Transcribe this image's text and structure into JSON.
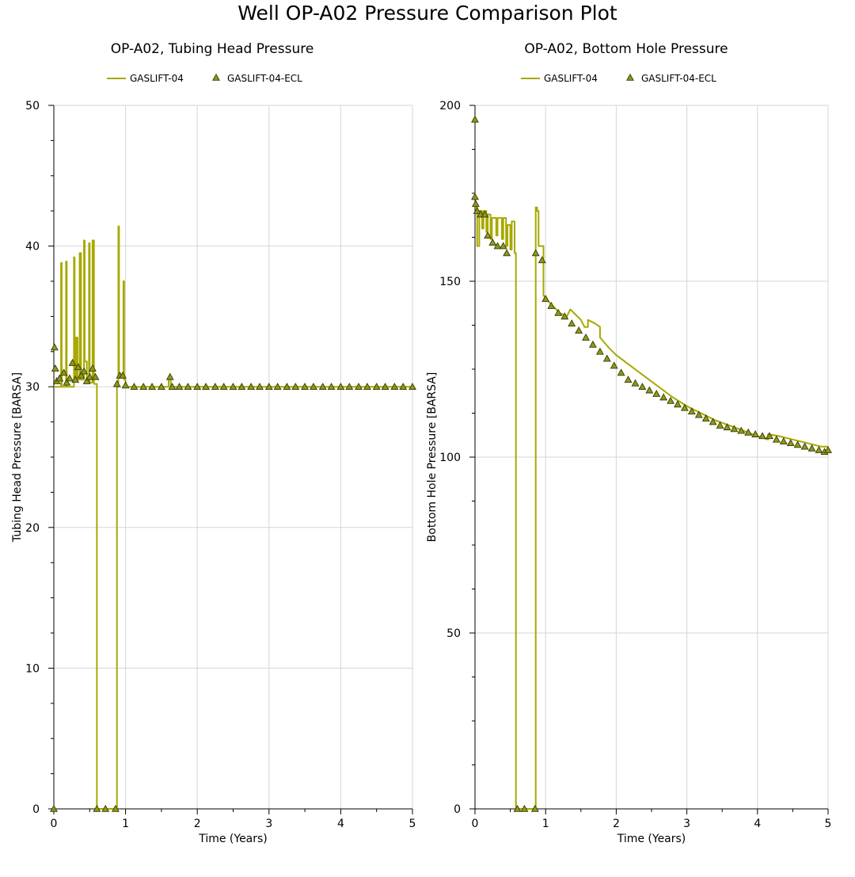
{
  "page_title": "Well OP-A02 Pressure Comparison Plot",
  "colors": {
    "line": "#a8a800",
    "marker_fill": "#8a9a1c",
    "marker_stroke": "#3a3a00",
    "grid": "#d6d6d6"
  },
  "chart_data": [
    {
      "type": "line",
      "title": "OP-A02, Tubing Head Pressure",
      "xlabel": "Time (Years)",
      "ylabel": "Tubing Head Pressure [BARSA]",
      "xlim": [
        0,
        5
      ],
      "ylim": [
        0,
        50
      ],
      "xticks": [
        0,
        1,
        2,
        3,
        4,
        5
      ],
      "yticks": [
        0,
        10,
        20,
        30,
        40,
        50
      ],
      "grid": true,
      "legend_position": "top",
      "series": [
        {
          "name": "GASLIFT-04",
          "kind": "line",
          "points": [
            [
              0,
              30
            ],
            [
              0.1,
              30
            ],
            [
              0.1,
              38.8
            ],
            [
              0.11,
              38.8
            ],
            [
              0.11,
              30
            ],
            [
              0.17,
              30
            ],
            [
              0.17,
              38.9
            ],
            [
              0.18,
              38.9
            ],
            [
              0.18,
              30
            ],
            [
              0.28,
              30
            ],
            [
              0.28,
              39.2
            ],
            [
              0.29,
              39.2
            ],
            [
              0.29,
              30.5
            ],
            [
              0.31,
              30.5
            ],
            [
              0.31,
              33.5
            ],
            [
              0.33,
              33.5
            ],
            [
              0.33,
              30.5
            ],
            [
              0.36,
              30.5
            ],
            [
              0.36,
              39.5
            ],
            [
              0.38,
              39.5
            ],
            [
              0.38,
              30.5
            ],
            [
              0.42,
              30.5
            ],
            [
              0.42,
              40.4
            ],
            [
              0.43,
              40.4
            ],
            [
              0.43,
              31.8
            ],
            [
              0.46,
              31.8
            ],
            [
              0.46,
              30.4
            ],
            [
              0.49,
              30.4
            ],
            [
              0.49,
              40.2
            ],
            [
              0.5,
              40.2
            ],
            [
              0.5,
              30.3
            ],
            [
              0.54,
              30.3
            ],
            [
              0.54,
              40.4
            ],
            [
              0.56,
              40.4
            ],
            [
              0.56,
              30.2
            ],
            [
              0.6,
              30.2
            ],
            [
              0.6,
              0
            ],
            [
              0.88,
              0
            ],
            [
              0.88,
              30
            ],
            [
              0.9,
              30
            ],
            [
              0.9,
              41.4
            ],
            [
              0.91,
              41.4
            ],
            [
              0.91,
              30.8
            ],
            [
              0.97,
              30.8
            ],
            [
              0.97,
              37.5
            ],
            [
              0.98,
              37.5
            ],
            [
              0.98,
              30.5
            ],
            [
              1.0,
              30.5
            ],
            [
              1.0,
              30
            ],
            [
              1.6,
              30
            ],
            [
              1.6,
              30.6
            ],
            [
              1.63,
              30.6
            ],
            [
              1.63,
              30
            ],
            [
              5,
              30
            ]
          ]
        },
        {
          "name": "GASLIFT-04-ECL",
          "kind": "markers",
          "points": [
            [
              0.0,
              0
            ],
            [
              0.01,
              32.8
            ],
            [
              0.02,
              31.3
            ],
            [
              0.04,
              30.4
            ],
            [
              0.08,
              30.6
            ],
            [
              0.14,
              31.0
            ],
            [
              0.18,
              30.3
            ],
            [
              0.22,
              30.6
            ],
            [
              0.26,
              31.7
            ],
            [
              0.3,
              30.5
            ],
            [
              0.34,
              31.4
            ],
            [
              0.38,
              30.8
            ],
            [
              0.42,
              31.1
            ],
            [
              0.46,
              30.4
            ],
            [
              0.5,
              30.7
            ],
            [
              0.54,
              31.3
            ],
            [
              0.58,
              30.7
            ],
            [
              0.6,
              0
            ],
            [
              0.72,
              0
            ],
            [
              0.86,
              0
            ],
            [
              0.88,
              30.2
            ],
            [
              0.92,
              30.8
            ],
            [
              0.96,
              30.8
            ],
            [
              1.0,
              30.1
            ],
            [
              1.12,
              30.0
            ],
            [
              1.25,
              30.0
            ],
            [
              1.37,
              30.0
            ],
            [
              1.5,
              30.0
            ],
            [
              1.62,
              30.7
            ],
            [
              1.65,
              30.0
            ],
            [
              1.75,
              30.0
            ],
            [
              1.87,
              30.0
            ],
            [
              2.0,
              30.0
            ],
            [
              2.12,
              30.0
            ],
            [
              2.25,
              30.0
            ],
            [
              2.37,
              30.0
            ],
            [
              2.5,
              30.0
            ],
            [
              2.62,
              30.0
            ],
            [
              2.75,
              30.0
            ],
            [
              2.87,
              30.0
            ],
            [
              3.0,
              30.0
            ],
            [
              3.12,
              30.0
            ],
            [
              3.25,
              30.0
            ],
            [
              3.37,
              30.0
            ],
            [
              3.5,
              30.0
            ],
            [
              3.62,
              30.0
            ],
            [
              3.75,
              30.0
            ],
            [
              3.87,
              30.0
            ],
            [
              4.0,
              30.0
            ],
            [
              4.12,
              30.0
            ],
            [
              4.25,
              30.0
            ],
            [
              4.37,
              30.0
            ],
            [
              4.5,
              30.0
            ],
            [
              4.62,
              30.0
            ],
            [
              4.75,
              30.0
            ],
            [
              4.87,
              30.0
            ],
            [
              5.0,
              30.0
            ]
          ]
        }
      ]
    },
    {
      "type": "line",
      "title": "OP-A02, Bottom Hole Pressure",
      "xlabel": "Time (Years)",
      "ylabel": "Bottom Hole Pressure [BARSA]",
      "xlim": [
        0,
        5
      ],
      "ylim": [
        0,
        200
      ],
      "xticks": [
        0,
        1,
        2,
        3,
        4,
        5
      ],
      "yticks": [
        0,
        50,
        100,
        150,
        200
      ],
      "grid": true,
      "legend_position": "top",
      "series": [
        {
          "name": "GASLIFT-04",
          "kind": "line",
          "points": [
            [
              0,
              171
            ],
            [
              0.03,
              171
            ],
            [
              0.03,
              160
            ],
            [
              0.06,
              160
            ],
            [
              0.06,
              170
            ],
            [
              0.1,
              170
            ],
            [
              0.1,
              165
            ],
            [
              0.12,
              165
            ],
            [
              0.12,
              170
            ],
            [
              0.16,
              170
            ],
            [
              0.16,
              164
            ],
            [
              0.18,
              164
            ],
            [
              0.18,
              169
            ],
            [
              0.22,
              169
            ],
            [
              0.22,
              162
            ],
            [
              0.24,
              162
            ],
            [
              0.24,
              168
            ],
            [
              0.3,
              168
            ],
            [
              0.3,
              163
            ],
            [
              0.32,
              163
            ],
            [
              0.32,
              168
            ],
            [
              0.38,
              168
            ],
            [
              0.38,
              162
            ],
            [
              0.4,
              162
            ],
            [
              0.4,
              168
            ],
            [
              0.44,
              168
            ],
            [
              0.44,
              160
            ],
            [
              0.46,
              160
            ],
            [
              0.46,
              166
            ],
            [
              0.5,
              166
            ],
            [
              0.5,
              159
            ],
            [
              0.52,
              159
            ],
            [
              0.52,
              167
            ],
            [
              0.56,
              167
            ],
            [
              0.56,
              158
            ],
            [
              0.58,
              158
            ],
            [
              0.58,
              0
            ],
            [
              0.86,
              0
            ],
            [
              0.86,
              171
            ],
            [
              0.88,
              171
            ],
            [
              0.88,
              170
            ],
            [
              0.9,
              170
            ],
            [
              0.9,
              160
            ],
            [
              0.97,
              160
            ],
            [
              0.97,
              146
            ],
            [
              1.05,
              144
            ],
            [
              1.1,
              143
            ],
            [
              1.2,
              141
            ],
            [
              1.3,
              140
            ],
            [
              1.35,
              142
            ],
            [
              1.4,
              141
            ],
            [
              1.5,
              139
            ],
            [
              1.55,
              137
            ],
            [
              1.6,
              137
            ],
            [
              1.6,
              139
            ],
            [
              1.7,
              138
            ],
            [
              1.77,
              137
            ],
            [
              1.77,
              134
            ],
            [
              1.9,
              131
            ],
            [
              2.0,
              129
            ],
            [
              2.2,
              126
            ],
            [
              2.4,
              123
            ],
            [
              2.6,
              120
            ],
            [
              2.8,
              117
            ],
            [
              3.0,
              114.5
            ],
            [
              3.2,
              112.5
            ],
            [
              3.4,
              110.5
            ],
            [
              3.6,
              109
            ],
            [
              3.8,
              107.5
            ],
            [
              4.0,
              106
            ],
            [
              4.15,
              105
            ],
            [
              4.15,
              106.5
            ],
            [
              4.3,
              106
            ],
            [
              4.5,
              105
            ],
            [
              4.7,
              104
            ],
            [
              4.9,
              103
            ],
            [
              5.0,
              103
            ]
          ]
        },
        {
          "name": "GASLIFT-04-ECL",
          "kind": "markers",
          "points": [
            [
              0.0,
              196
            ],
            [
              0.0,
              174
            ],
            [
              0.01,
              172
            ],
            [
              0.03,
              170
            ],
            [
              0.08,
              169
            ],
            [
              0.14,
              169
            ],
            [
              0.18,
              163
            ],
            [
              0.25,
              161
            ],
            [
              0.32,
              160
            ],
            [
              0.4,
              160
            ],
            [
              0.45,
              158
            ],
            [
              0.6,
              0
            ],
            [
              0.7,
              0
            ],
            [
              0.85,
              0
            ],
            [
              0.86,
              158
            ],
            [
              0.95,
              156
            ],
            [
              1.0,
              145
            ],
            [
              1.08,
              143
            ],
            [
              1.18,
              141
            ],
            [
              1.27,
              140
            ],
            [
              1.37,
              138
            ],
            [
              1.47,
              136
            ],
            [
              1.57,
              134
            ],
            [
              1.67,
              132
            ],
            [
              1.77,
              130
            ],
            [
              1.87,
              128
            ],
            [
              1.97,
              126
            ],
            [
              2.07,
              124
            ],
            [
              2.17,
              122
            ],
            [
              2.27,
              121
            ],
            [
              2.37,
              120
            ],
            [
              2.47,
              119
            ],
            [
              2.57,
              118
            ],
            [
              2.67,
              117
            ],
            [
              2.77,
              116
            ],
            [
              2.87,
              115
            ],
            [
              2.97,
              114
            ],
            [
              3.07,
              113
            ],
            [
              3.17,
              112
            ],
            [
              3.27,
              111
            ],
            [
              3.37,
              110
            ],
            [
              3.47,
              109
            ],
            [
              3.57,
              108.5
            ],
            [
              3.67,
              108
            ],
            [
              3.77,
              107.5
            ],
            [
              3.87,
              107
            ],
            [
              3.97,
              106.5
            ],
            [
              4.07,
              106
            ],
            [
              4.17,
              106
            ],
            [
              4.27,
              105
            ],
            [
              4.37,
              104.5
            ],
            [
              4.47,
              104
            ],
            [
              4.57,
              103.5
            ],
            [
              4.67,
              103
            ],
            [
              4.77,
              102.5
            ],
            [
              4.87,
              102
            ],
            [
              4.95,
              101.5
            ],
            [
              5.0,
              102
            ]
          ]
        }
      ]
    }
  ]
}
